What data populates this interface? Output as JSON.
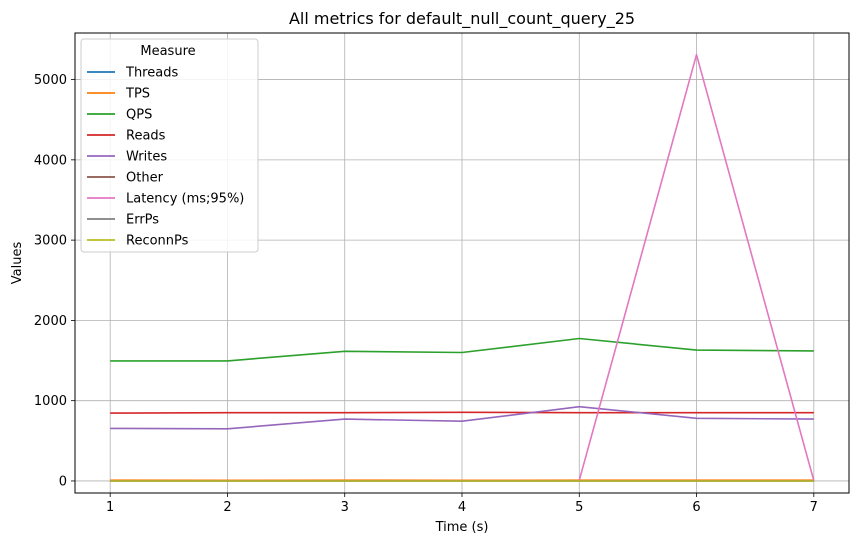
{
  "chart_data": {
    "type": "line",
    "title": "All metrics for default_null_count_query_25",
    "xlabel": "Time (s)",
    "ylabel": "Values",
    "x": [
      1,
      2,
      3,
      4,
      5,
      6,
      7
    ],
    "xlim": [
      0.7,
      7.3
    ],
    "ylim": [
      -150,
      5580
    ],
    "xticks": [
      1,
      2,
      3,
      4,
      5,
      6,
      7
    ],
    "yticks": [
      0,
      1000,
      2000,
      3000,
      4000,
      5000
    ],
    "grid": true,
    "legend": {
      "title": "Measure",
      "position": "upper-left"
    },
    "series": [
      {
        "name": "Threads",
        "color": "#1f77b4",
        "values": [
          4,
          4,
          4,
          4,
          4,
          4,
          4
        ]
      },
      {
        "name": "TPS",
        "color": "#ff7f0e",
        "values": [
          10,
          8,
          9,
          8,
          9,
          9,
          9
        ]
      },
      {
        "name": "QPS",
        "color": "#2ca02c",
        "values": [
          1495,
          1495,
          1615,
          1600,
          1775,
          1630,
          1620
        ]
      },
      {
        "name": "Reads",
        "color": "#d62728",
        "values": [
          845,
          850,
          850,
          855,
          850,
          850,
          850
        ]
      },
      {
        "name": "Writes",
        "color": "#9467bd",
        "values": [
          655,
          650,
          770,
          745,
          925,
          780,
          770
        ]
      },
      {
        "name": "Other",
        "color": "#8c564b",
        "values": [
          0,
          0,
          0,
          0,
          0,
          0,
          0
        ]
      },
      {
        "name": "Latency (ms;95%)",
        "color": "#e377c2",
        "values": [
          null,
          null,
          null,
          null,
          10,
          5310,
          5
        ]
      },
      {
        "name": "ErrPs",
        "color": "#7f7f7f",
        "values": [
          0,
          0,
          0,
          0,
          0,
          0,
          0
        ]
      },
      {
        "name": "ReconnPs",
        "color": "#bcbd22",
        "values": [
          0,
          0,
          0,
          0,
          0,
          0,
          0
        ]
      }
    ]
  }
}
